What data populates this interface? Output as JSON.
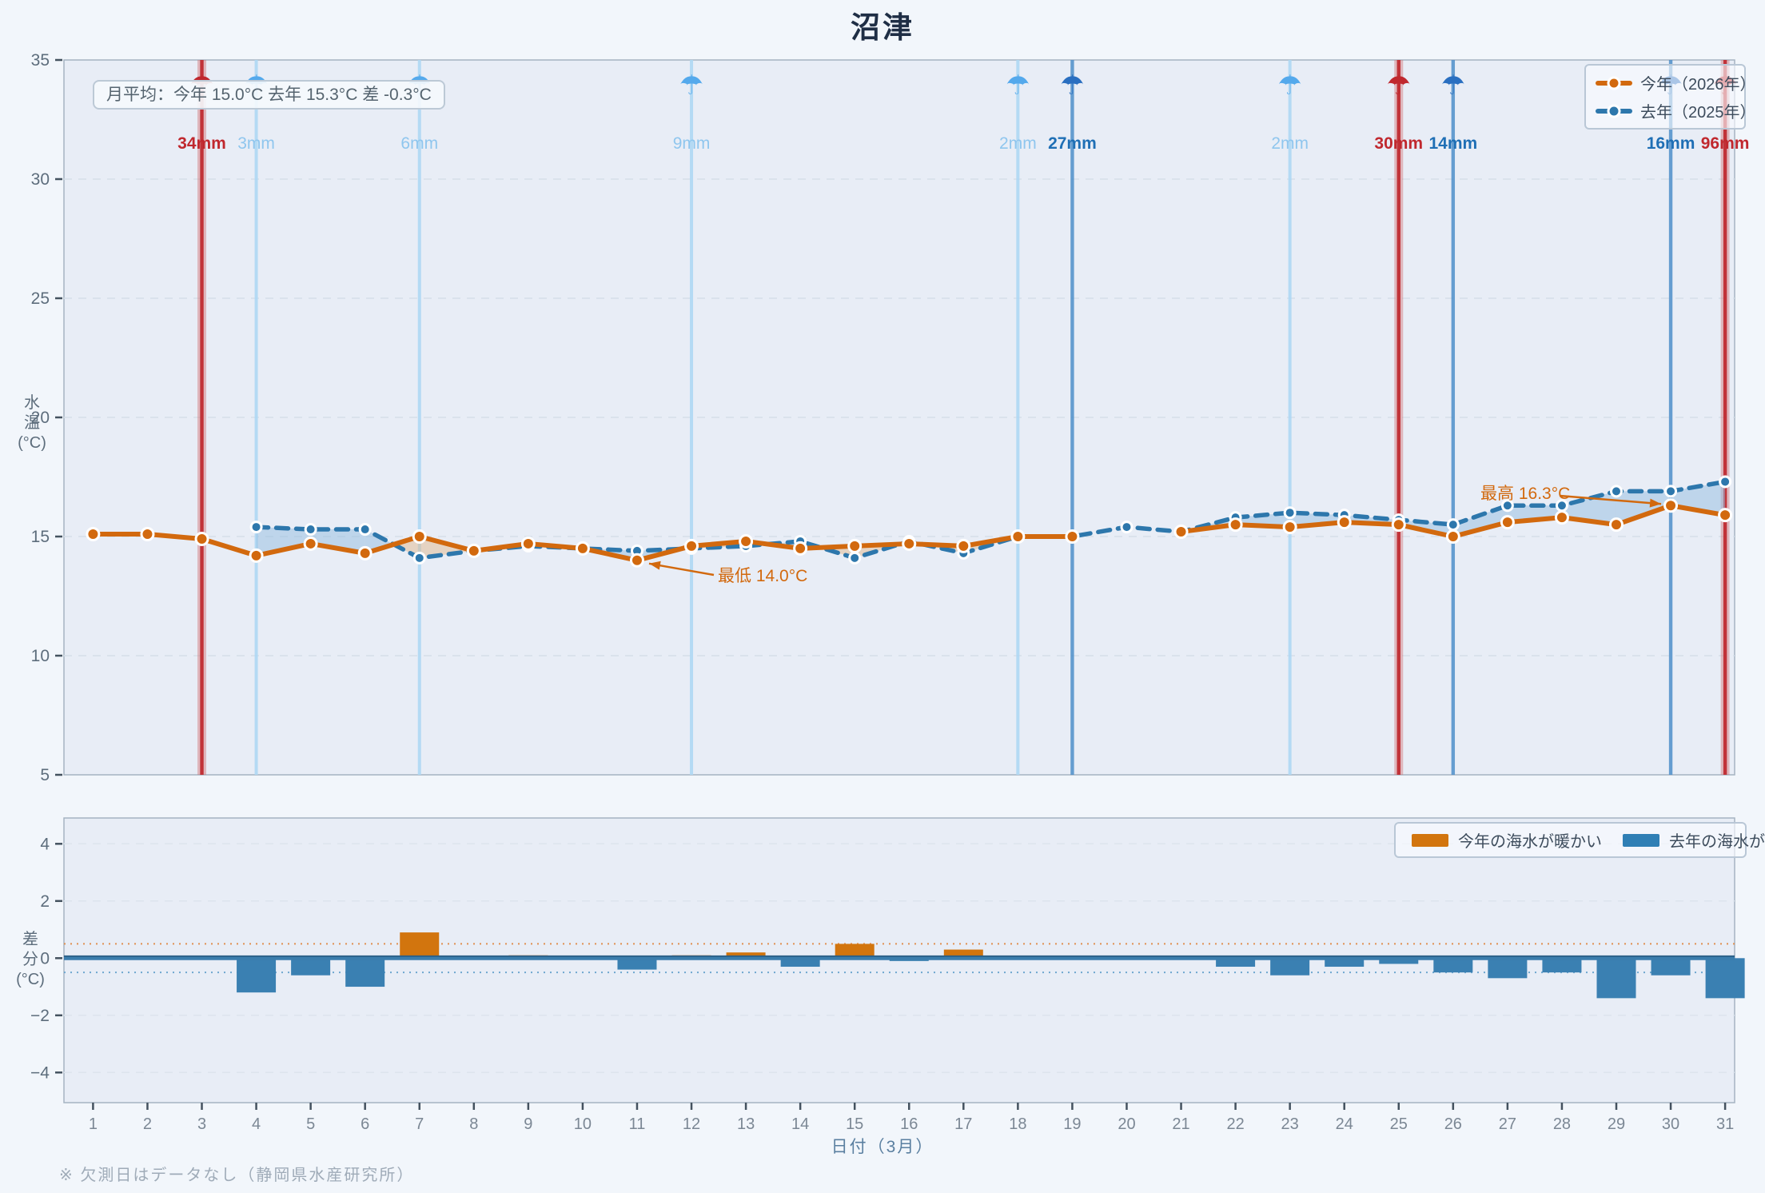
{
  "title": "沼津",
  "footnote": "※ 欠測日はデータなし（静岡県水産研究所）",
  "top_chart": {
    "summary": "月平均：今年 15.0°C 去年 15.3°C 差 -0.3°C",
    "ylabel_lines": [
      "水",
      "温",
      "(°C)"
    ],
    "rain_levels": {
      "light_color": "#8fc6ee",
      "medium_color": "#2a6fc0",
      "heavy_color": "#c0282e",
      "light_line": "#aed7f4",
      "medium_line": "#4d8ec9",
      "heavy_line": "#bf2b30"
    }
  },
  "bottom_chart": {
    "ylabel_lines": [
      "差",
      "分",
      "(°C)"
    ]
  },
  "chart_data": [
    {
      "type": "line",
      "title": "沼津",
      "xlabel": "日付（3月）",
      "ylabel": "水温(°C)",
      "x": [
        1,
        2,
        3,
        4,
        5,
        6,
        7,
        8,
        9,
        10,
        11,
        12,
        13,
        14,
        15,
        16,
        17,
        18,
        19,
        20,
        21,
        22,
        23,
        24,
        25,
        26,
        27,
        28,
        29,
        30,
        31
      ],
      "ylim": [
        5,
        35
      ],
      "yticks": [
        35,
        30,
        25,
        20,
        15,
        10,
        5
      ],
      "grid": true,
      "legend_position": "top-right",
      "series": [
        {
          "name": "今年（2026年）",
          "color": "#d2690e",
          "style": "solid",
          "values": [
            15.1,
            15.1,
            14.9,
            14.2,
            14.7,
            14.3,
            15.0,
            14.4,
            14.7,
            14.5,
            14.0,
            14.6,
            14.8,
            14.5,
            14.6,
            14.7,
            14.6,
            15.0,
            15.0,
            null,
            15.2,
            15.5,
            15.4,
            15.6,
            15.5,
            15.0,
            15.6,
            15.8,
            15.5,
            16.3,
            15.9
          ]
        },
        {
          "name": "去年（2025年）",
          "color": "#2d77ac",
          "style": "dashed",
          "values": [
            null,
            null,
            null,
            15.4,
            15.3,
            15.3,
            14.1,
            14.4,
            14.6,
            14.5,
            14.4,
            14.5,
            14.6,
            14.8,
            14.1,
            14.8,
            14.3,
            15.0,
            15.0,
            15.4,
            15.2,
            15.8,
            16.0,
            15.9,
            15.7,
            15.5,
            16.3,
            16.3,
            16.9,
            16.9,
            17.3
          ]
        }
      ],
      "annotations": [
        {
          "label": "最低 14.0°C",
          "series": 0,
          "day": 11,
          "value": 14.0
        },
        {
          "label": "最高 16.3°C",
          "series": 0,
          "day": 30,
          "value": 16.3
        }
      ],
      "monthly_mean_this_year": 15.0,
      "monthly_mean_last_year": 15.3,
      "monthly_mean_diff": -0.3,
      "rain_events": [
        {
          "day": 3,
          "label": "34mm",
          "level": "heavy"
        },
        {
          "day": 4,
          "label": "3mm",
          "level": "light"
        },
        {
          "day": 7,
          "label": "6mm",
          "level": "light"
        },
        {
          "day": 12,
          "label": "9mm",
          "level": "light"
        },
        {
          "day": 18,
          "label": "2mm",
          "level": "light"
        },
        {
          "day": 19,
          "label": "27mm",
          "level": "medium"
        },
        {
          "day": 23,
          "label": "2mm",
          "level": "light"
        },
        {
          "day": 25,
          "label": "30mm",
          "level": "heavy"
        },
        {
          "day": 26,
          "label": "14mm",
          "level": "medium"
        },
        {
          "day": 30,
          "label": "16mm",
          "level": "medium"
        },
        {
          "day": 31,
          "label": "96mm",
          "level": "heavy"
        }
      ]
    },
    {
      "type": "bar",
      "ylabel": "差分(°C)",
      "x": [
        1,
        2,
        3,
        4,
        5,
        6,
        7,
        8,
        9,
        10,
        11,
        12,
        13,
        14,
        15,
        16,
        17,
        18,
        19,
        20,
        21,
        22,
        23,
        24,
        25,
        26,
        27,
        28,
        29,
        30,
        31
      ],
      "ylim": [
        -5,
        5
      ],
      "yticks": [
        4,
        2,
        0,
        -2,
        -4
      ],
      "guide_lines": [
        0.5,
        -0.5
      ],
      "values": [
        null,
        null,
        null,
        -1.2,
        -0.6,
        -1.0,
        0.9,
        0,
        0.1,
        0,
        -0.4,
        0.1,
        0.2,
        -0.3,
        0.5,
        -0.1,
        0.3,
        0,
        0,
        null,
        0,
        -0.3,
        -0.6,
        -0.3,
        -0.2,
        -0.5,
        -0.7,
        -0.5,
        -1.4,
        -0.6,
        -1.4
      ],
      "positive_color": "#d2750e",
      "negative_color": "#3a80b2",
      "legend": [
        {
          "label": "今年の海水が暖かい",
          "color": "#d2750e"
        },
        {
          "label": "去年の海水が暖かい",
          "color": "#2f7fb5"
        }
      ]
    }
  ]
}
